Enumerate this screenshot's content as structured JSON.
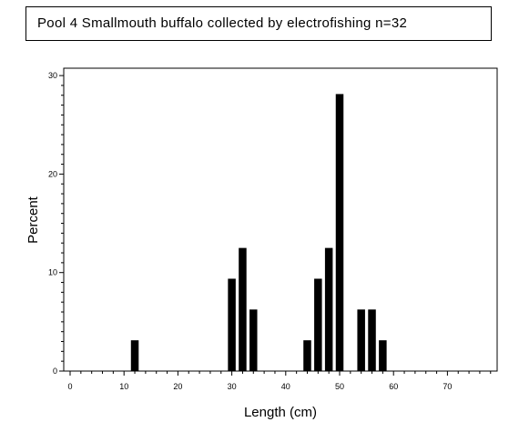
{
  "chart_data": {
    "type": "bar",
    "title": "Pool 4 Smallmouth buffalo collected by electrofishing n=32",
    "xlabel": "Length (cm)",
    "ylabel": "Percent",
    "xlim": [
      0,
      80
    ],
    "ylim": [
      0,
      30
    ],
    "x_ticks": [
      "0",
      "10",
      "20",
      "30",
      "40",
      "50",
      "60",
      "70"
    ],
    "y_ticks": [
      "0",
      "10",
      "20",
      "30"
    ],
    "grid": false,
    "bars": [
      {
        "x": 12,
        "value": 3.125
      },
      {
        "x": 30,
        "value": 9.375
      },
      {
        "x": 32,
        "value": 12.5
      },
      {
        "x": 34,
        "value": 6.25
      },
      {
        "x": 44,
        "value": 3.125
      },
      {
        "x": 46,
        "value": 9.375
      },
      {
        "x": 48,
        "value": 12.5
      },
      {
        "x": 50,
        "value": 28.125
      },
      {
        "x": 54,
        "value": 6.25
      },
      {
        "x": 56,
        "value": 6.25
      },
      {
        "x": 58,
        "value": 3.125
      }
    ]
  }
}
